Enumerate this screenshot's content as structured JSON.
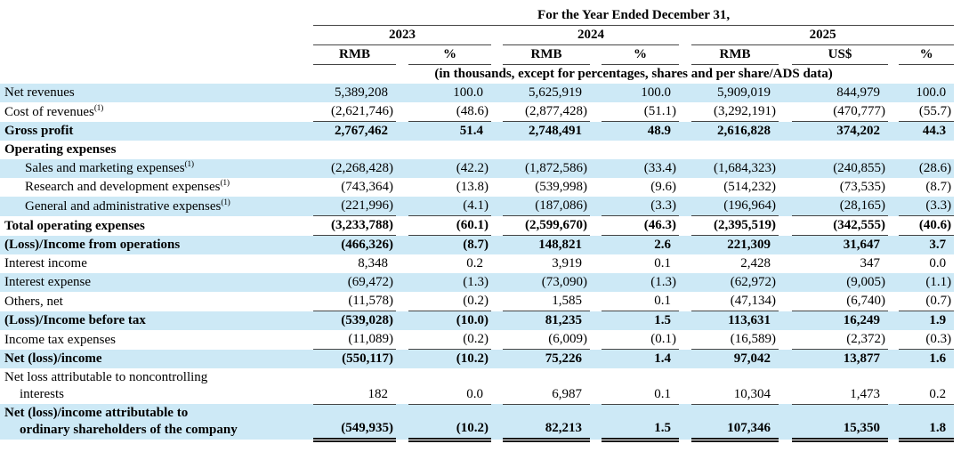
{
  "colors": {
    "row_highlight": "#cde9f6",
    "rule_line": "#454545",
    "text": "#000000"
  },
  "table": {
    "title": "For the Year Ended December 31,",
    "note": "(in thousands, except for percentages, shares and per share/ADS data)",
    "year_groups": [
      {
        "year": "2023",
        "columns": [
          "RMB",
          "%"
        ]
      },
      {
        "year": "2024",
        "columns": [
          "RMB",
          "%"
        ]
      },
      {
        "year": "2025",
        "columns": [
          "RMB",
          "US$",
          "%"
        ]
      }
    ],
    "unit_headers": [
      "RMB",
      "%",
      "RMB",
      "%",
      "RMB",
      "US$",
      "%"
    ],
    "rows": [
      {
        "label": "Net revenues",
        "footnote": "",
        "label2": "",
        "bold": false,
        "indent": false,
        "shade": true,
        "rule": "none",
        "values": [
          "5,389,208",
          "100.0",
          "5,625,919",
          "100.0",
          "5,909,019",
          "844,979",
          "100.0"
        ]
      },
      {
        "label": "Cost of revenues",
        "footnote": "(1)",
        "label2": "",
        "bold": false,
        "indent": false,
        "shade": false,
        "rule": "single",
        "values": [
          "(2,621,746)",
          "(48.6)",
          "(2,877,428)",
          "(51.1)",
          "(3,292,191)",
          "(470,777)",
          "(55.7)"
        ]
      },
      {
        "label": "Gross profit",
        "footnote": "",
        "label2": "",
        "bold": true,
        "indent": false,
        "shade": true,
        "rule": "none",
        "values": [
          "2,767,462",
          "51.4",
          "2,748,491",
          "48.9",
          "2,616,828",
          "374,202",
          "44.3"
        ]
      },
      {
        "label": "Operating expenses",
        "footnote": "",
        "label2": "",
        "bold": true,
        "indent": false,
        "shade": false,
        "rule": "none",
        "values": [
          "",
          "",
          "",
          "",
          "",
          "",
          ""
        ]
      },
      {
        "label": "Sales and marketing expenses",
        "footnote": "(1)",
        "label2": "",
        "bold": false,
        "indent": true,
        "shade": true,
        "rule": "none",
        "values": [
          "(2,268,428)",
          "(42.2)",
          "(1,872,586)",
          "(33.4)",
          "(1,684,323)",
          "(240,855)",
          "(28.6)"
        ]
      },
      {
        "label": "Research and development expenses",
        "footnote": "(1)",
        "label2": "",
        "bold": false,
        "indent": true,
        "shade": false,
        "rule": "none",
        "values": [
          "(743,364)",
          "(13.8)",
          "(539,998)",
          "(9.6)",
          "(514,232)",
          "(73,535)",
          "(8.7)"
        ]
      },
      {
        "label": "General and administrative expenses",
        "footnote": "(1)",
        "label2": "",
        "bold": false,
        "indent": true,
        "shade": true,
        "rule": "single",
        "values": [
          "(221,996)",
          "(4.1)",
          "(187,086)",
          "(3.3)",
          "(196,964)",
          "(28,165)",
          "(3.3)"
        ]
      },
      {
        "label": "Total operating expenses",
        "footnote": "",
        "label2": "",
        "bold": true,
        "indent": false,
        "shade": false,
        "rule": "single",
        "values": [
          "(3,233,788)",
          "(60.1)",
          "(2,599,670)",
          "(46.3)",
          "(2,395,519)",
          "(342,555)",
          "(40.6)"
        ]
      },
      {
        "label": "(Loss)/Income from operations",
        "footnote": "",
        "label2": "",
        "bold": true,
        "indent": false,
        "shade": true,
        "rule": "none",
        "values": [
          "(466,326)",
          "(8.7)",
          "148,821",
          "2.6",
          "221,309",
          "31,647",
          "3.7"
        ]
      },
      {
        "label": "Interest income",
        "footnote": "",
        "label2": "",
        "bold": false,
        "indent": false,
        "shade": false,
        "rule": "none",
        "values": [
          "8,348",
          "0.2",
          "3,919",
          "0.1",
          "2,428",
          "347",
          "0.0"
        ]
      },
      {
        "label": "Interest expense",
        "footnote": "",
        "label2": "",
        "bold": false,
        "indent": false,
        "shade": true,
        "rule": "none",
        "values": [
          "(69,472)",
          "(1.3)",
          "(73,090)",
          "(1.3)",
          "(62,972)",
          "(9,005)",
          "(1.1)"
        ]
      },
      {
        "label": "Others, net",
        "footnote": "",
        "label2": "",
        "bold": false,
        "indent": false,
        "shade": false,
        "rule": "single",
        "values": [
          "(11,578)",
          "(0.2)",
          "1,585",
          "0.1",
          "(47,134)",
          "(6,740)",
          "(0.7)"
        ]
      },
      {
        "label": "(Loss)/Income before tax",
        "footnote": "",
        "label2": "",
        "bold": true,
        "indent": false,
        "shade": true,
        "rule": "none",
        "values": [
          "(539,028)",
          "(10.0)",
          "81,235",
          "1.5",
          "113,631",
          "16,249",
          "1.9"
        ]
      },
      {
        "label": "Income tax expenses",
        "footnote": "",
        "label2": "",
        "bold": false,
        "indent": false,
        "shade": false,
        "rule": "single",
        "values": [
          "(11,089)",
          "(0.2)",
          "(6,009)",
          "(0.1)",
          "(16,589)",
          "(2,372)",
          "(0.3)"
        ]
      },
      {
        "label": "Net (loss)/income",
        "footnote": "",
        "label2": "",
        "bold": true,
        "indent": false,
        "shade": true,
        "rule": "none",
        "values": [
          "(550,117)",
          "(10.2)",
          "75,226",
          "1.4",
          "97,042",
          "13,877",
          "1.6"
        ]
      },
      {
        "label": "Net loss attributable to noncontrolling",
        "footnote": "",
        "label2": "interests",
        "bold": false,
        "indent": false,
        "shade": false,
        "rule": "single",
        "values": [
          "182",
          "0.0",
          "6,987",
          "0.1",
          "10,304",
          "1,473",
          "0.2"
        ]
      },
      {
        "label": "Net (loss)/income attributable to",
        "footnote": "",
        "label2": "ordinary shareholders of the company",
        "bold": true,
        "indent": false,
        "shade": true,
        "rule": "double",
        "values": [
          "(549,935)",
          "(10.2)",
          "82,213",
          "1.5",
          "107,346",
          "15,350",
          "1.8"
        ]
      }
    ]
  }
}
